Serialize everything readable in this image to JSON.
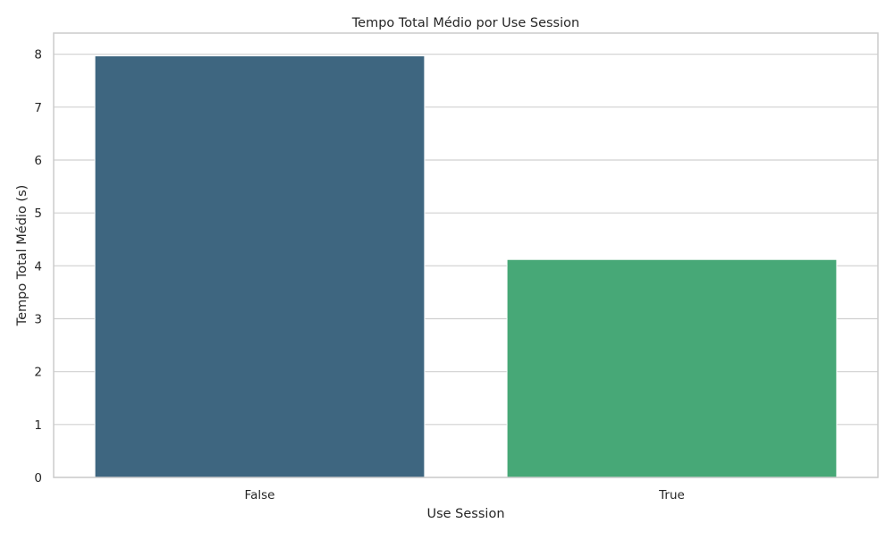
{
  "chart_data": {
    "type": "bar",
    "title": "Tempo Total Médio por Use Session",
    "xlabel": "Use Session",
    "ylabel": "Tempo Total Médio (s)",
    "categories": [
      "False",
      "True"
    ],
    "values": [
      7.97,
      4.12
    ],
    "ylim": [
      0,
      8.4
    ],
    "yticks": [
      "0",
      "1",
      "2",
      "3",
      "4",
      "5",
      "6",
      "7",
      "8"
    ],
    "grid": true,
    "legend": "none",
    "colors": [
      "#3e6680",
      "#47a877"
    ],
    "grid_color": "#d0d0d0",
    "spine_color": "#cccccc"
  }
}
